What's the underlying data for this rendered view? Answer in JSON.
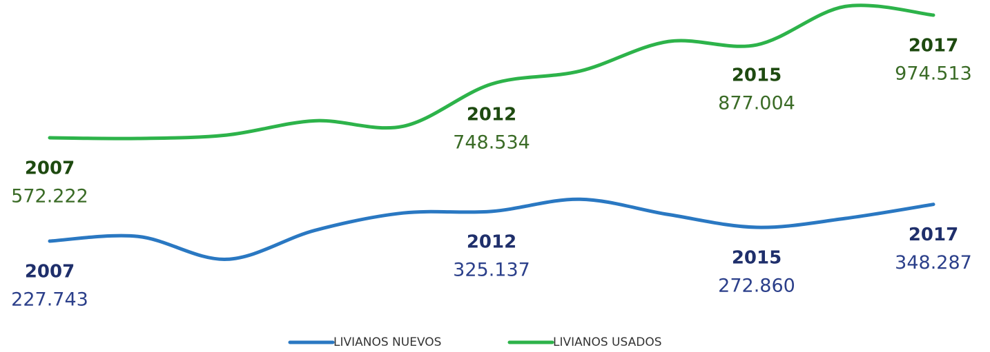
{
  "chart_data": {
    "type": "line",
    "categories": [
      "2007",
      null,
      null,
      null,
      null,
      "2012",
      null,
      null,
      "2015",
      null,
      "2017"
    ],
    "series": [
      {
        "name": "LIVIANOS NUEVOS",
        "color": "#2a78c2",
        "label_color": "#1f2f6b",
        "value_color": "#2b3f8a",
        "values": [
          227743,
          243000,
          168000,
          263000,
          320000,
          325137,
          365000,
          315000,
          272860,
          302000,
          348287
        ],
        "value_labels": [
          "227.743",
          null,
          null,
          null,
          null,
          "325.137",
          null,
          null,
          "272.860",
          null,
          "348.287"
        ]
      },
      {
        "name": "LIVIANOS USADOS",
        "color": "#2db34a",
        "label_color": "#1e4a10",
        "value_color": "#3a6b26",
        "values": [
          572222,
          570000,
          581000,
          628000,
          610000,
          748534,
          791000,
          888000,
          877004,
          1003000,
          974513
        ],
        "value_labels": [
          "572.222",
          null,
          null,
          null,
          null,
          "748.534",
          null,
          null,
          "877.004",
          null,
          "974.513"
        ]
      }
    ],
    "legend": "bottom"
  }
}
